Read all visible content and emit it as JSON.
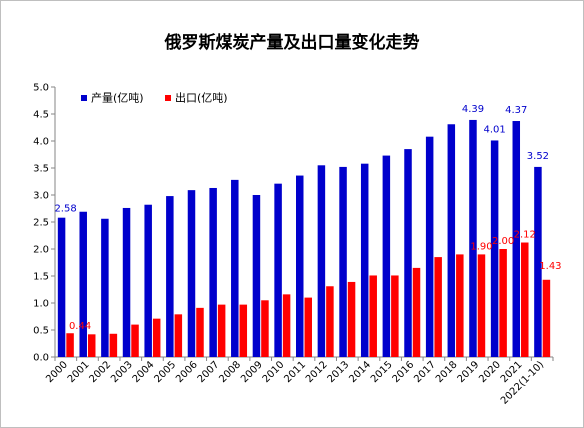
{
  "chart_data": {
    "type": "bar",
    "title": "俄罗斯煤炭产量及出口量变化走势",
    "categories": [
      "2000",
      "2001",
      "2002",
      "2003",
      "2004",
      "2005",
      "2006",
      "2007",
      "2008",
      "2009",
      "2010",
      "2011",
      "2012",
      "2013",
      "2014",
      "2015",
      "2016",
      "2017",
      "2018",
      "2019",
      "2020",
      "2021",
      "2022(1-10)"
    ],
    "series": [
      {
        "name": "产量(亿吨)",
        "color": "#0000cc",
        "values": [
          2.58,
          2.69,
          2.56,
          2.76,
          2.82,
          2.98,
          3.09,
          3.13,
          3.28,
          3.0,
          3.21,
          3.36,
          3.55,
          3.52,
          3.58,
          3.73,
          3.85,
          4.08,
          4.31,
          4.39,
          4.01,
          4.37,
          3.52
        ],
        "labels": {
          "0": "2.58",
          "19": "4.39",
          "20": "4.01",
          "21": "4.37",
          "22": "3.52"
        }
      },
      {
        "name": "出口(亿吨)",
        "color": "#ff0000",
        "values": [
          0.44,
          0.42,
          0.43,
          0.6,
          0.71,
          0.79,
          0.91,
          0.97,
          0.97,
          1.05,
          1.16,
          1.1,
          1.31,
          1.39,
          1.51,
          1.51,
          1.65,
          1.85,
          1.9,
          1.9,
          2.0,
          2.12,
          1.43
        ],
        "labels": {
          "0": "0.44",
          "19": "1.90",
          "20": "2.00",
          "21": "2.12",
          "22": "1.43"
        }
      }
    ],
    "ylim": [
      0,
      5.0
    ],
    "yticks": [
      "0.0",
      "0.5",
      "1.0",
      "1.5",
      "2.0",
      "2.5",
      "3.0",
      "3.5",
      "4.0",
      "4.5",
      "5.0"
    ],
    "grid": false,
    "legend": "top-left"
  }
}
